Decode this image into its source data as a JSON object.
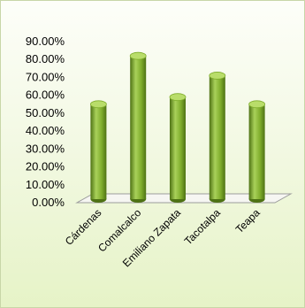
{
  "chart_data": {
    "type": "bar",
    "categories": [
      "Cárdenas",
      "Comalcalco",
      "Emiliano Zapata",
      "Tacotalpa",
      "Teapa"
    ],
    "values": [
      54,
      81,
      58,
      70,
      54
    ],
    "ylim": [
      0,
      90
    ],
    "yticks": [
      "0.00%",
      "10.00%",
      "20.00%",
      "30.00%",
      "40.00%",
      "50.00%",
      "60.00%",
      "70.00%",
      "80.00%",
      "90.00%"
    ],
    "grid": false,
    "legend": "none",
    "bar_shape": "cylinder",
    "colors": {
      "bar_light": "#a9d15a",
      "bar_mid": "#7fad2c",
      "bar_dark": "#4e7214",
      "bar_top": "#b9dd6a"
    }
  }
}
